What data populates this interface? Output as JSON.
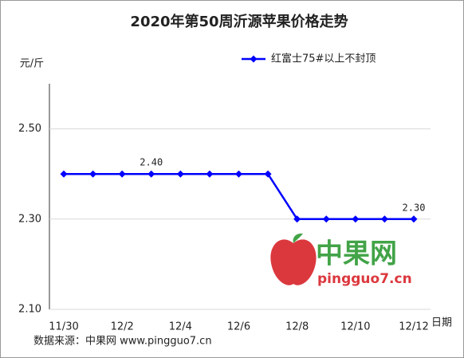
{
  "chart_data": {
    "type": "line",
    "title": "2020年第50周沂源苹果价格走势",
    "y_label": "元/斤",
    "x_label": "日期",
    "source": "数据来源：中果网 www.pingguo7.cn",
    "watermark": {
      "name": "中果网",
      "url": "pingguo7.cn"
    },
    "categories": [
      "11/30",
      null,
      "12/2",
      null,
      "12/4",
      null,
      "12/6",
      null,
      "12/8",
      null,
      "12/10",
      null,
      "12/12"
    ],
    "series": [
      {
        "name": "红富士75#以上不封顶",
        "color": "#0000ff",
        "values": [
          2.4,
          2.4,
          2.4,
          2.4,
          2.4,
          2.4,
          2.4,
          2.4,
          2.3,
          2.3,
          2.3,
          2.3,
          2.3
        ],
        "value_labels": [
          null,
          null,
          null,
          "2.40",
          null,
          null,
          null,
          null,
          null,
          null,
          null,
          null,
          "2.30"
        ]
      }
    ],
    "ylim": [
      2.1,
      2.6
    ],
    "yticks": [
      {
        "value": 2.1,
        "label": "2.10"
      },
      {
        "value": 2.3,
        "label": "2.30"
      },
      {
        "value": 2.5,
        "label": "2.50"
      }
    ],
    "grid": true,
    "legend": "top-right"
  }
}
